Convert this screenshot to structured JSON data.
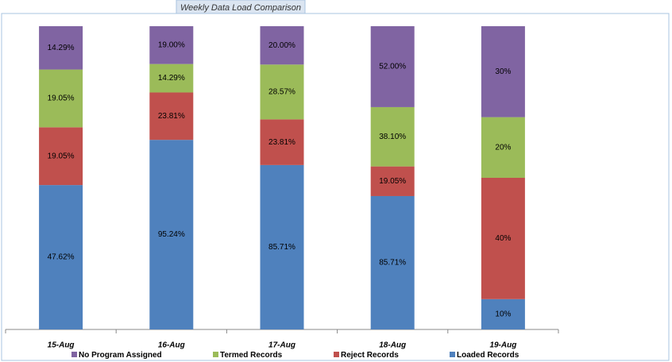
{
  "chart_data": {
    "type": "bar",
    "stacking": "percent",
    "title": "Weekly Data Load Comparison",
    "categories": [
      "15-Aug",
      "16-Aug",
      "17-Aug",
      "18-Aug",
      "19-Aug"
    ],
    "series": [
      {
        "name": "No Program  Assigned",
        "color": "#8064a2",
        "values": [
          14.29,
          19.0,
          20.0,
          52.0,
          30
        ],
        "value_labels": [
          "14.29%",
          "19.00%",
          "20.00%",
          "52.00%",
          "30%"
        ]
      },
      {
        "name": "Termed Records",
        "color": "#9bbb59",
        "values": [
          19.05,
          14.29,
          28.57,
          38.1,
          20
        ],
        "value_labels": [
          "19.05%",
          "14.29%",
          "28.57%",
          "38.10%",
          "20%"
        ]
      },
      {
        "name": "Reject Records",
        "color": "#c0504d",
        "values": [
          19.05,
          23.81,
          23.81,
          19.05,
          40
        ],
        "value_labels": [
          "19.05%",
          "23.81%",
          "23.81%",
          "19.05%",
          "40%"
        ]
      },
      {
        "name": "Loaded Records",
        "color": "#4f81bd",
        "values": [
          47.62,
          95.24,
          85.71,
          85.71,
          10
        ],
        "value_labels": [
          "47.62%",
          "95.24%",
          "85.71%",
          "85.71%",
          "10%"
        ]
      }
    ]
  }
}
